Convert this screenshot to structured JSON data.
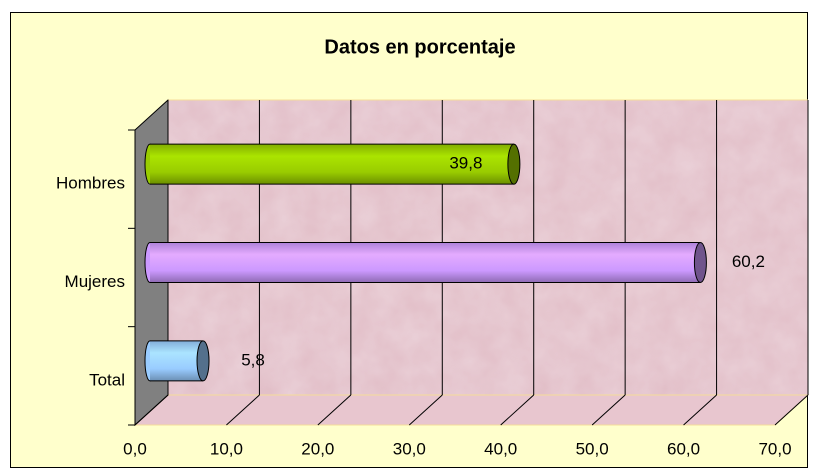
{
  "chart_data": {
    "type": "bar3d",
    "orientation": "horizontal",
    "title": "Datos en porcentaje",
    "categories": [
      "Hombres",
      "Mujeres",
      "Total"
    ],
    "values": [
      39.8,
      60.2,
      5.8
    ],
    "value_labels": [
      "39,8",
      "60,2",
      "5,8"
    ],
    "colors": [
      "#99cc00",
      "#cc99ff",
      "#99ccff"
    ],
    "xlim": [
      0,
      70
    ],
    "xticks": [
      {
        "value": 0,
        "label": "0,0"
      },
      {
        "value": 10,
        "label": "10,0"
      },
      {
        "value": 20,
        "label": "20,0"
      },
      {
        "value": 30,
        "label": "30,0"
      },
      {
        "value": 40,
        "label": "40,0"
      },
      {
        "value": 50,
        "label": "50,0"
      },
      {
        "value": 60,
        "label": "60,0"
      },
      {
        "value": 70,
        "label": "70,0"
      }
    ],
    "grid": true
  }
}
